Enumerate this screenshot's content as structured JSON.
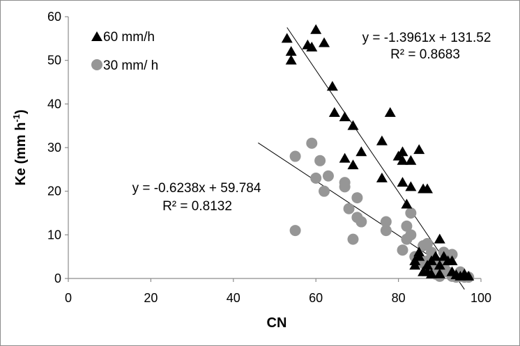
{
  "chart_data": {
    "type": "scatter",
    "xlabel": "CN",
    "ylabel": "Ke (mm h",
    "ylabel_sup": "-1",
    "ylabel_close": ")",
    "xlim": [
      0,
      100
    ],
    "ylim": [
      0,
      60
    ],
    "xticks": [
      "0",
      "20",
      "40",
      "60",
      "80",
      "100"
    ],
    "yticks": [
      "0",
      "10",
      "20",
      "30",
      "40",
      "50",
      "60"
    ],
    "legend_position": "top-left",
    "grid": false,
    "series": [
      {
        "name": "60 mm/h",
        "marker": "triangle",
        "color": "#000000",
        "points": [
          [
            53,
            55
          ],
          [
            54,
            52
          ],
          [
            54,
            50
          ],
          [
            58,
            53.5
          ],
          [
            59,
            53
          ],
          [
            60,
            57
          ],
          [
            62,
            54
          ],
          [
            64,
            44
          ],
          [
            64.5,
            38
          ],
          [
            67,
            37
          ],
          [
            67,
            27.5
          ],
          [
            69,
            35
          ],
          [
            69,
            26
          ],
          [
            71,
            29
          ],
          [
            76,
            31.5
          ],
          [
            76,
            23
          ],
          [
            78,
            38
          ],
          [
            80,
            28
          ],
          [
            81,
            29
          ],
          [
            81,
            27
          ],
          [
            81,
            22
          ],
          [
            82,
            17
          ],
          [
            83,
            27
          ],
          [
            83,
            21
          ],
          [
            85,
            29.5
          ],
          [
            86,
            20.5
          ],
          [
            87,
            20.5
          ],
          [
            84,
            4
          ],
          [
            84,
            3
          ],
          [
            85,
            6
          ],
          [
            85,
            5
          ],
          [
            86,
            1.5
          ],
          [
            87,
            1.5
          ],
          [
            87,
            3
          ],
          [
            88,
            4
          ],
          [
            88,
            1
          ],
          [
            89,
            5
          ],
          [
            90,
            3
          ],
          [
            90,
            9
          ],
          [
            90,
            1
          ],
          [
            91,
            5
          ],
          [
            92,
            4
          ],
          [
            93,
            1.5
          ],
          [
            93,
            4
          ],
          [
            94,
            0.8
          ],
          [
            95,
            0.5
          ],
          [
            96,
            1
          ],
          [
            97,
            0.5
          ]
        ],
        "trendline": {
          "equation": "y = -1.3961x + 131.52",
          "r2": "R² = 0.8683",
          "slope": -1.3961,
          "intercept": 131.52,
          "x_range": [
            53,
            96
          ]
        }
      },
      {
        "name": "30 mm/ h",
        "marker": "circle",
        "color": "#969696",
        "points": [
          [
            55,
            28
          ],
          [
            55,
            11
          ],
          [
            59,
            31
          ],
          [
            60,
            23
          ],
          [
            61,
            27
          ],
          [
            62,
            20
          ],
          [
            63,
            23.5
          ],
          [
            67,
            22
          ],
          [
            67,
            21
          ],
          [
            68,
            16
          ],
          [
            69,
            9
          ],
          [
            70,
            18.5
          ],
          [
            70,
            14
          ],
          [
            71,
            13
          ],
          [
            77,
            13
          ],
          [
            77,
            11
          ],
          [
            81,
            6.5
          ],
          [
            82,
            12
          ],
          [
            82,
            9
          ],
          [
            83,
            15
          ],
          [
            83,
            10
          ],
          [
            84,
            5
          ],
          [
            85,
            4
          ],
          [
            86,
            3.5
          ],
          [
            86,
            7.5
          ],
          [
            87,
            4
          ],
          [
            87,
            8
          ],
          [
            88,
            3
          ],
          [
            88,
            6
          ],
          [
            89,
            1
          ],
          [
            89,
            4
          ],
          [
            90,
            0.5
          ],
          [
            90,
            2
          ],
          [
            91,
            6
          ],
          [
            91,
            3
          ],
          [
            92,
            1.5
          ],
          [
            93,
            0.5
          ],
          [
            93,
            5.5
          ],
          [
            94,
            0.3
          ],
          [
            95,
            1.5
          ],
          [
            95,
            0.5
          ],
          [
            96,
            0.3
          ],
          [
            97,
            0.3
          ]
        ],
        "trendline": {
          "equation": "y = -0.6238x + 59.784",
          "r2": "R² = 0.8132",
          "slope": -0.6238,
          "intercept": 59.784,
          "x_range": [
            46,
            96
          ]
        }
      }
    ]
  }
}
